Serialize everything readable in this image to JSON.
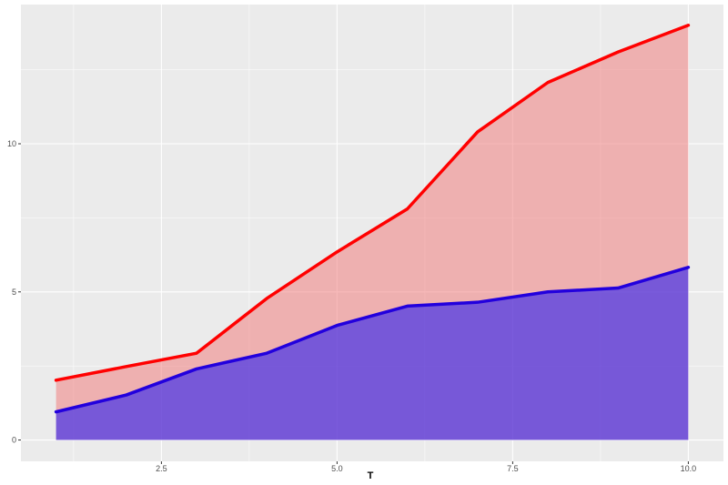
{
  "chart_data": {
    "type": "area",
    "xlabel": "T",
    "ylabel": "",
    "xlim": [
      0.5,
      10.5
    ],
    "ylim": [
      -0.72,
      14.7
    ],
    "x_ticks": [
      2.5,
      5.0,
      7.5,
      10.0
    ],
    "x_tick_labels": [
      "2.5",
      "5.0",
      "7.5",
      "10.0"
    ],
    "y_ticks": [
      0,
      5,
      10
    ],
    "y_tick_labels": [
      "0",
      "5",
      "10"
    ],
    "grid": true,
    "background": "#ebebeb",
    "x": [
      1,
      2,
      3,
      4,
      5,
      6,
      7,
      8,
      9,
      10
    ],
    "series": [
      {
        "values": [
          2.02,
          2.48,
          2.93,
          4.78,
          6.35,
          7.8,
          10.4,
          12.07,
          13.1,
          14.0
        ],
        "fill": "#f08080",
        "fill_opacity": 0.55,
        "line_color": "#ff0000"
      },
      {
        "values": [
          0.95,
          1.52,
          2.4,
          2.93,
          3.87,
          4.52,
          4.65,
          5.0,
          5.13,
          5.83
        ],
        "fill": "#0000ff",
        "fill_opacity": 0.5,
        "line_color": "#2200dd"
      }
    ]
  }
}
